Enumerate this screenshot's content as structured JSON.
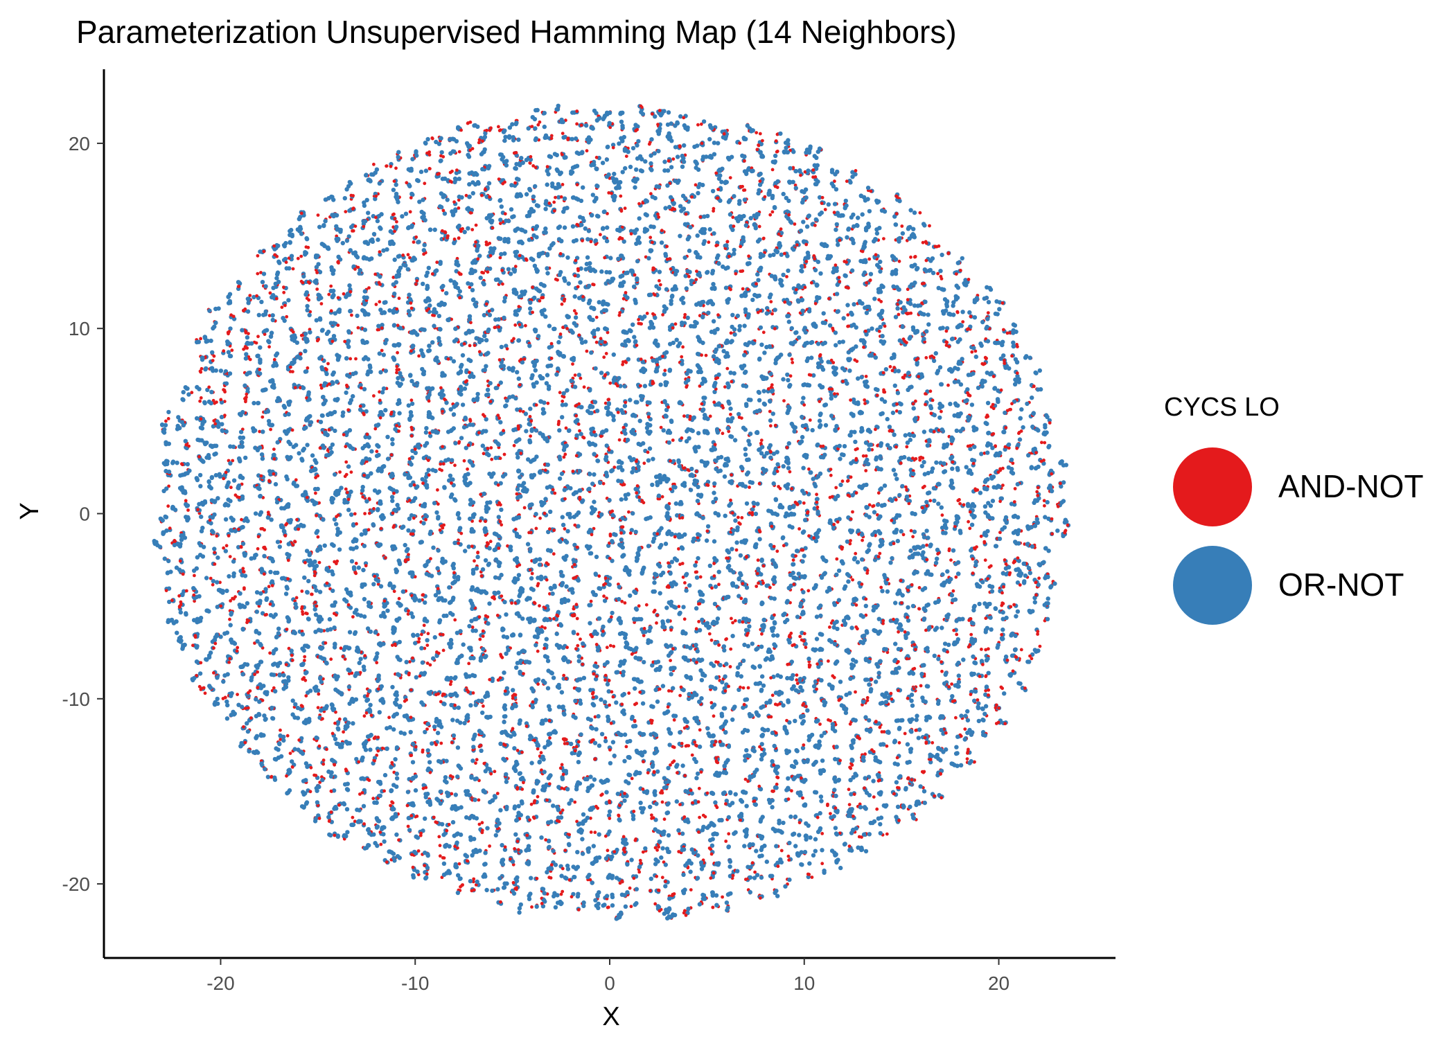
{
  "chart_data": {
    "type": "scatter",
    "title": "Parameterization Unsupervised Hamming Map (14 Neighbors)",
    "xlabel": "X",
    "ylabel": "Y",
    "xlim": [
      -26,
      26
    ],
    "ylim": [
      -24,
      24
    ],
    "x_ticks": [
      -20,
      -10,
      0,
      10,
      20
    ],
    "y_ticks": [
      -20,
      -10,
      0,
      10,
      20
    ],
    "grid": false,
    "legend": {
      "title": "CYCS LO",
      "position": "right",
      "entries": [
        {
          "label": "AND-NOT",
          "color": "#E41A1C"
        },
        {
          "label": "OR-NOT",
          "color": "#377EB8"
        }
      ]
    },
    "point_cloud": {
      "shape": "disc",
      "center": [
        0,
        0
      ],
      "radius_x": 23.5,
      "radius_y": 22,
      "series": [
        "AND-NOT",
        "OR-NOT"
      ],
      "description_note": ""
    }
  }
}
